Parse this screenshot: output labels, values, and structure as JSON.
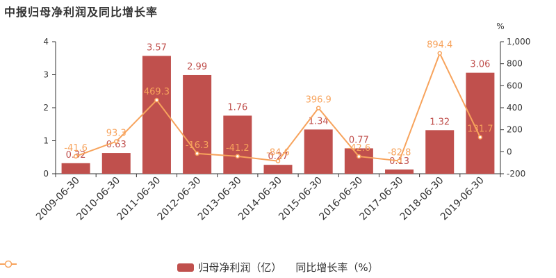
{
  "title": "中报归母净利润及同比增长率",
  "colors": {
    "bar": "#c0504d",
    "line": "#f7a35c"
  },
  "chart_data": {
    "type": "bar",
    "categories": [
      "2009-06-30",
      "2010-06-30",
      "2011-06-30",
      "2012-06-30",
      "2013-06-30",
      "2014-06-30",
      "2015-06-30",
      "2016-06-30",
      "2017-06-30",
      "2018-06-30",
      "2019-06-30"
    ],
    "series": [
      {
        "name": "归母净利润（亿）",
        "type": "bar",
        "axis": "left",
        "values": [
          0.32,
          0.63,
          3.57,
          2.99,
          1.76,
          0.27,
          1.34,
          0.77,
          0.13,
          1.32,
          3.06
        ],
        "labels": [
          "0.32",
          "0.63",
          "3.57",
          "2.99",
          "1.76",
          "0.27",
          "1.34",
          "0.77",
          "0.13",
          "1.32",
          "3.06"
        ]
      },
      {
        "name": "同比增长率（%）",
        "type": "line",
        "axis": "right",
        "values": [
          -41.6,
          93.3,
          469.3,
          -16.3,
          -41.2,
          -84.6,
          396.9,
          -42.6,
          -82.8,
          894.4,
          131.7
        ],
        "labels": [
          "-41.6",
          "93.3",
          "469.3",
          "-16.3",
          "-41.2",
          "-84.6",
          "396.9",
          "-42.6",
          "-82.8",
          "894.4",
          "131.7"
        ]
      }
    ],
    "left_axis": {
      "ylim": [
        0,
        4
      ],
      "ticks": [
        "0",
        "1",
        "2",
        "3",
        "4"
      ]
    },
    "right_axis": {
      "unit": "%",
      "ylim": [
        -200,
        1000
      ],
      "ticks": [
        "-200",
        "0",
        "200",
        "400",
        "600",
        "800",
        "1,000"
      ]
    },
    "legend_position": "bottom",
    "grid": false
  },
  "legend": {
    "bar_label": "归母净利润（亿）",
    "line_label": "同比增长率（%）"
  }
}
